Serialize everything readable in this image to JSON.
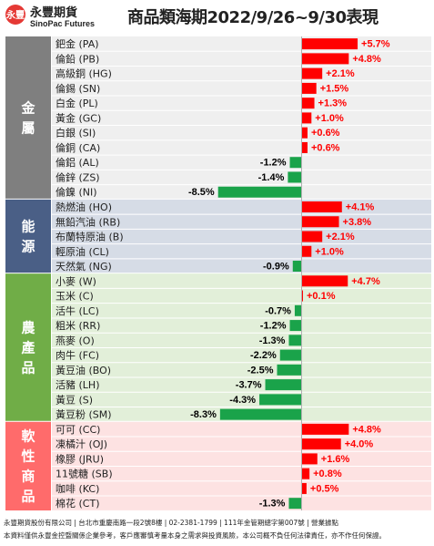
{
  "header": {
    "logo_text": "永豐",
    "brand_cn": "永豐期貨",
    "brand_en": "SinoPac Futures",
    "title": "商品類海期2022/9/26~9/30表現"
  },
  "footer": {
    "line1": "永豐期貨股份有限公司 | 台北市重慶南路一段2號8樓 | 02-2381-1799 | 111年金管期總字第007號 | 營業據點",
    "line2": "本資料僅供永豐金控暨關係企業參考，客戶應審慎考量本身之需求與投資風險，本公司概不負任何法律責任，亦不作任何保證。"
  },
  "colors": {
    "positive": "#ff0000",
    "negative": "#1aa34a",
    "label_positive": "#ff0000",
    "label_negative": "#000000"
  },
  "chart_data": {
    "type": "bar",
    "orientation": "horizontal",
    "value_unit": "%",
    "groups": [
      {
        "name": "金屬",
        "tab_color": "#7f7f7f",
        "bg_color": "#efefef",
        "items": [
          {
            "label": "鈀金 (PA)",
            "value": 5.7,
            "value_label": "+5.7%"
          },
          {
            "label": "倫鉛 (PB)",
            "value": 4.8,
            "value_label": "+4.8%"
          },
          {
            "label": "高級銅 (HG)",
            "value": 2.1,
            "value_label": "+2.1%"
          },
          {
            "label": "倫錫 (SN)",
            "value": 1.5,
            "value_label": "+1.5%"
          },
          {
            "label": "白金 (PL)",
            "value": 1.3,
            "value_label": "+1.3%"
          },
          {
            "label": "黃金 (GC)",
            "value": 1.0,
            "value_label": "+1.0%"
          },
          {
            "label": "白銀 (SI)",
            "value": 0.6,
            "value_label": "+0.6%"
          },
          {
            "label": "倫銅 (CA)",
            "value": 0.6,
            "value_label": "+0.6%"
          },
          {
            "label": "倫鋁 (AL)",
            "value": -1.2,
            "value_label": "-1.2%"
          },
          {
            "label": "倫鋅 (ZS)",
            "value": -1.4,
            "value_label": "-1.4%"
          },
          {
            "label": "倫鎳 (NI)",
            "value": -8.5,
            "value_label": "-8.5%"
          }
        ]
      },
      {
        "name": "能源",
        "tab_color": "#4a5f86",
        "bg_color": "#d6dce6",
        "items": [
          {
            "label": "熱燃油 (HO)",
            "value": 4.1,
            "value_label": "+4.1%"
          },
          {
            "label": "無鉛汽油 (RB)",
            "value": 3.8,
            "value_label": "+3.8%"
          },
          {
            "label": "布蘭特原油 (B)",
            "value": 2.1,
            "value_label": "+2.1%"
          },
          {
            "label": "輕原油 (CL)",
            "value": 1.0,
            "value_label": "+1.0%"
          },
          {
            "label": "天然氣 (NG)",
            "value": -0.9,
            "value_label": "-0.9%"
          }
        ]
      },
      {
        "name": "農產品",
        "tab_color": "#70ad47",
        "bg_color": "#e2efd9",
        "items": [
          {
            "label": "小麥 (W)",
            "value": 4.7,
            "value_label": "+4.7%"
          },
          {
            "label": "玉米 (C)",
            "value": 0.1,
            "value_label": "+0.1%"
          },
          {
            "label": "活牛 (LC)",
            "value": -0.7,
            "value_label": "-0.7%"
          },
          {
            "label": "粗米 (RR)",
            "value": -1.2,
            "value_label": "-1.2%"
          },
          {
            "label": "燕麥 (O)",
            "value": -1.3,
            "value_label": "-1.3%"
          },
          {
            "label": "肉牛 (FC)",
            "value": -2.2,
            "value_label": "-2.2%"
          },
          {
            "label": "黃豆油 (BO)",
            "value": -2.5,
            "value_label": "-2.5%"
          },
          {
            "label": "活豬 (LH)",
            "value": -3.7,
            "value_label": "-3.7%"
          },
          {
            "label": "黃豆 (S)",
            "value": -4.3,
            "value_label": "-4.3%"
          },
          {
            "label": "黃豆粉 (SM)",
            "value": -8.3,
            "value_label": "-8.3%"
          }
        ]
      },
      {
        "name": "軟性商品",
        "tab_color": "#ff6b6b",
        "bg_color": "#fde2e2",
        "items": [
          {
            "label": "可可 (CC)",
            "value": 4.8,
            "value_label": "+4.8%"
          },
          {
            "label": "凍橘汁 (OJ)",
            "value": 4.0,
            "value_label": "+4.0%"
          },
          {
            "label": "橡膠 (JRU)",
            "value": 1.6,
            "value_label": "+1.6%"
          },
          {
            "label": "11號糖 (SB)",
            "value": 0.8,
            "value_label": "+0.8%"
          },
          {
            "label": "咖啡 (KC)",
            "value": 0.5,
            "value_label": "+0.5%"
          },
          {
            "label": "棉花 (CT)",
            "value": -1.3,
            "value_label": "-1.3%"
          }
        ]
      }
    ]
  }
}
